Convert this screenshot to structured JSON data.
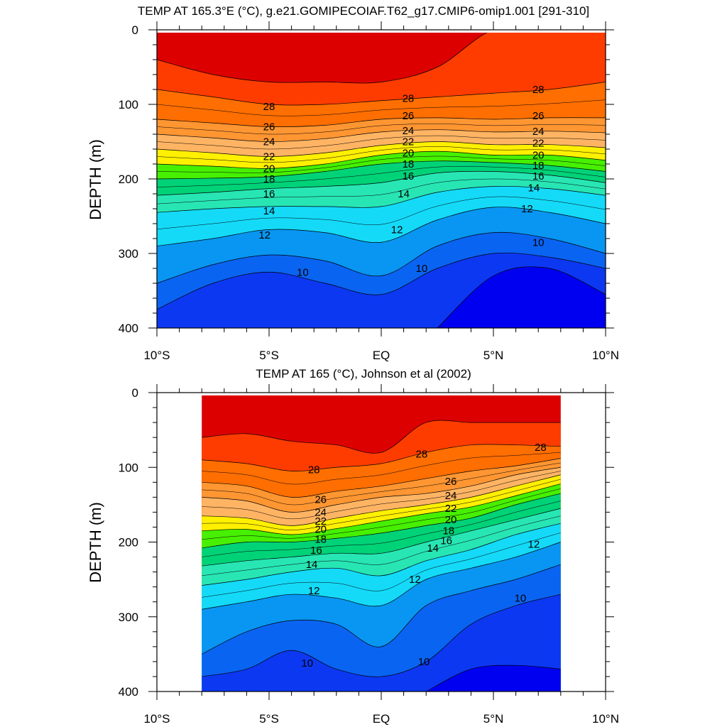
{
  "chart_data": [
    {
      "type": "heatmap",
      "subtype": "filled-contour",
      "title": "TEMP AT 165.3°E (°C), g.e21.GOMIPECOIAF.T62_g17.CMIP6-omip1.001 [291-310]",
      "xlabel": "",
      "ylabel": "DEPTH (m)",
      "xlim": [
        -10,
        10
      ],
      "ylim": [
        400,
        0
      ],
      "x_ticks": [
        -10,
        -5,
        0,
        5,
        10
      ],
      "x_tick_labels": [
        "10°S",
        "5°S",
        "EQ",
        "5°N",
        "10°N"
      ],
      "y_ticks": [
        0,
        100,
        200,
        300,
        400
      ],
      "y_tick_labels": [
        "0",
        "100",
        "200",
        "300",
        "400"
      ],
      "x_coverage": [
        -10,
        10
      ],
      "contour_interval": 1,
      "colorbar": "none",
      "isotherm_depths": {
        "x": [
          -10,
          -7.5,
          -5,
          -2.5,
          0,
          2.5,
          5,
          7.5,
          10
        ],
        "29": [
          40,
          60,
          70,
          70,
          70,
          50,
          0,
          0,
          0
        ],
        "28": [
          80,
          90,
          100,
          100,
          95,
          90,
          85,
          80,
          70
        ],
        "26": [
          120,
          125,
          130,
          128,
          120,
          118,
          120,
          118,
          118
        ],
        "24": [
          140,
          145,
          150,
          146,
          137,
          134,
          137,
          136,
          138
        ],
        "22": [
          160,
          165,
          170,
          165,
          155,
          150,
          154,
          154,
          158
        ],
        "20": [
          180,
          183,
          186,
          180,
          168,
          163,
          168,
          168,
          175
        ],
        "18": [
          200,
          199,
          197,
          190,
          180,
          176,
          178,
          182,
          190
        ],
        "16": [
          222,
          218,
          213,
          210,
          205,
          192,
          190,
          195,
          205
        ],
        "14": [
          245,
          240,
          237,
          237,
          237,
          218,
          210,
          213,
          222
        ],
        "12": [
          290,
          280,
          268,
          272,
          285,
          255,
          238,
          245,
          260
        ],
        "11": [
          340,
          315,
          302,
          310,
          330,
          290,
          272,
          280,
          300
        ],
        "10": [
          375,
          340,
          325,
          340,
          355,
          320,
          300,
          305,
          320
        ],
        "9": [
          null,
          null,
          null,
          null,
          null,
          400,
          330,
          320,
          355
        ]
      },
      "contour_labels": [
        {
          "text": "28",
          "x": -5,
          "y": 103
        },
        {
          "text": "26",
          "x": -5,
          "y": 130
        },
        {
          "text": "24",
          "x": -5,
          "y": 150
        },
        {
          "text": "22",
          "x": -5,
          "y": 170
        },
        {
          "text": "20",
          "x": -5,
          "y": 186
        },
        {
          "text": "18",
          "x": -5,
          "y": 200
        },
        {
          "text": "16",
          "x": -5,
          "y": 220
        },
        {
          "text": "14",
          "x": -5,
          "y": 243
        },
        {
          "text": "12",
          "x": -5.2,
          "y": 275
        },
        {
          "text": "10",
          "x": -3.5,
          "y": 325
        },
        {
          "text": "28",
          "x": 1.2,
          "y": 92
        },
        {
          "text": "26",
          "x": 1.2,
          "y": 115
        },
        {
          "text": "24",
          "x": 1.2,
          "y": 135
        },
        {
          "text": "22",
          "x": 1.2,
          "y": 150
        },
        {
          "text": "20",
          "x": 1.2,
          "y": 165
        },
        {
          "text": "18",
          "x": 1.2,
          "y": 180
        },
        {
          "text": "16",
          "x": 1.2,
          "y": 196
        },
        {
          "text": "14",
          "x": 1,
          "y": 220
        },
        {
          "text": "12",
          "x": 0.7,
          "y": 268
        },
        {
          "text": "10",
          "x": 1.8,
          "y": 320
        },
        {
          "text": "28",
          "x": 7,
          "y": 80
        },
        {
          "text": "26",
          "x": 7,
          "y": 115
        },
        {
          "text": "24",
          "x": 7,
          "y": 136
        },
        {
          "text": "22",
          "x": 7,
          "y": 152
        },
        {
          "text": "20",
          "x": 7,
          "y": 168
        },
        {
          "text": "18",
          "x": 7,
          "y": 182
        },
        {
          "text": "16",
          "x": 7,
          "y": 196
        },
        {
          "text": "14",
          "x": 6.8,
          "y": 212
        },
        {
          "text": "12",
          "x": 6.5,
          "y": 240
        },
        {
          "text": "10",
          "x": 7,
          "y": 285
        }
      ]
    },
    {
      "type": "heatmap",
      "subtype": "filled-contour",
      "title": "TEMP AT 165 (°C), Johnson et al (2002)",
      "xlabel": "",
      "ylabel": "DEPTH (m)",
      "xlim": [
        -10,
        10
      ],
      "ylim": [
        400,
        0
      ],
      "x_ticks": [
        -10,
        -5,
        0,
        5,
        10
      ],
      "x_tick_labels": [
        "10°S",
        "5°S",
        "EQ",
        "5°N",
        "10°N"
      ],
      "y_ticks": [
        0,
        100,
        200,
        300,
        400
      ],
      "y_tick_labels": [
        "0",
        "100",
        "200",
        "300",
        "400"
      ],
      "x_coverage": [
        -8,
        8
      ],
      "contour_interval": 1,
      "colorbar": "none",
      "isotherm_depths": {
        "x": [
          -8,
          -6,
          -4,
          -2,
          0,
          2,
          4,
          6,
          8
        ],
        "29": [
          60,
          55,
          65,
          70,
          80,
          40,
          40,
          40,
          40
        ],
        "28": [
          90,
          95,
          105,
          100,
          95,
          80,
          70,
          70,
          72
        ],
        "26": [
          120,
          125,
          140,
          132,
          125,
          115,
          105,
          98,
          88
        ],
        "24": [
          140,
          145,
          160,
          150,
          140,
          135,
          125,
          110,
          100
        ],
        "22": [
          165,
          168,
          178,
          168,
          158,
          150,
          140,
          125,
          110
        ],
        "20": [
          185,
          183,
          190,
          182,
          172,
          162,
          153,
          138,
          122
        ],
        "18": [
          208,
          200,
          200,
          195,
          188,
          178,
          168,
          150,
          135
        ],
        "16": [
          232,
          225,
          220,
          215,
          215,
          200,
          185,
          170,
          155
        ],
        "14": [
          258,
          250,
          240,
          235,
          245,
          225,
          210,
          190,
          175
        ],
        "12": [
          290,
          280,
          270,
          275,
          285,
          250,
          235,
          220,
          200
        ],
        "11": [
          350,
          320,
          305,
          310,
          340,
          285,
          265,
          250,
          230
        ],
        "10": [
          380,
          370,
          345,
          370,
          380,
          360,
          310,
          285,
          270
        ],
        "9": [
          null,
          null,
          null,
          null,
          null,
          400,
          370,
          365,
          370
        ]
      },
      "contour_labels": [
        {
          "text": "28",
          "x": -3,
          "y": 103
        },
        {
          "text": "26",
          "x": -2.7,
          "y": 143
        },
        {
          "text": "24",
          "x": -2.7,
          "y": 160
        },
        {
          "text": "22",
          "x": -2.7,
          "y": 172
        },
        {
          "text": "20",
          "x": -2.7,
          "y": 183
        },
        {
          "text": "18",
          "x": -2.7,
          "y": 196
        },
        {
          "text": "16",
          "x": -2.9,
          "y": 211
        },
        {
          "text": "14",
          "x": -3.1,
          "y": 230
        },
        {
          "text": "12",
          "x": -3,
          "y": 265
        },
        {
          "text": "10",
          "x": -3.3,
          "y": 362
        },
        {
          "text": "28",
          "x": 1.8,
          "y": 82
        },
        {
          "text": "26",
          "x": 3.1,
          "y": 119
        },
        {
          "text": "24",
          "x": 3.1,
          "y": 138
        },
        {
          "text": "22",
          "x": 3.1,
          "y": 155
        },
        {
          "text": "20",
          "x": 3.1,
          "y": 170
        },
        {
          "text": "18",
          "x": 3,
          "y": 185
        },
        {
          "text": "16",
          "x": 2.9,
          "y": 198
        },
        {
          "text": "14",
          "x": 2.3,
          "y": 208
        },
        {
          "text": "12",
          "x": 1.5,
          "y": 250
        },
        {
          "text": "10",
          "x": 1.9,
          "y": 360
        },
        {
          "text": "28",
          "x": 7.1,
          "y": 73
        },
        {
          "text": "12",
          "x": 6.8,
          "y": 203
        },
        {
          "text": "10",
          "x": 6.2,
          "y": 275
        }
      ]
    }
  ],
  "colors": {
    "palette": [
      [
        "8",
        "#0000f0"
      ],
      [
        "9",
        "#0c38f2"
      ],
      [
        "10",
        "#0a64f2"
      ],
      [
        "11",
        "#0896f2"
      ],
      [
        "12",
        "#00c6fa"
      ],
      [
        "13",
        "#14daf8"
      ],
      [
        "14",
        "#3cf0f0"
      ],
      [
        "15",
        "#28e6b4"
      ],
      [
        "16",
        "#14dc8c"
      ],
      [
        "17",
        "#00d278"
      ],
      [
        "18",
        "#1edc32"
      ],
      [
        "19",
        "#46f000"
      ],
      [
        "20",
        "#b4f000"
      ],
      [
        "21",
        "#fff000"
      ],
      [
        "22",
        "#ffd24a"
      ],
      [
        "23",
        "#ffb464"
      ],
      [
        "24",
        "#ffa050"
      ],
      [
        "25",
        "#ff9632"
      ],
      [
        "26",
        "#ff8c14"
      ],
      [
        "27",
        "#ff6e00"
      ],
      [
        "28",
        "#ff3c00"
      ],
      [
        "29",
        "#ff0000"
      ],
      [
        "30",
        "#dc0000"
      ]
    ]
  }
}
